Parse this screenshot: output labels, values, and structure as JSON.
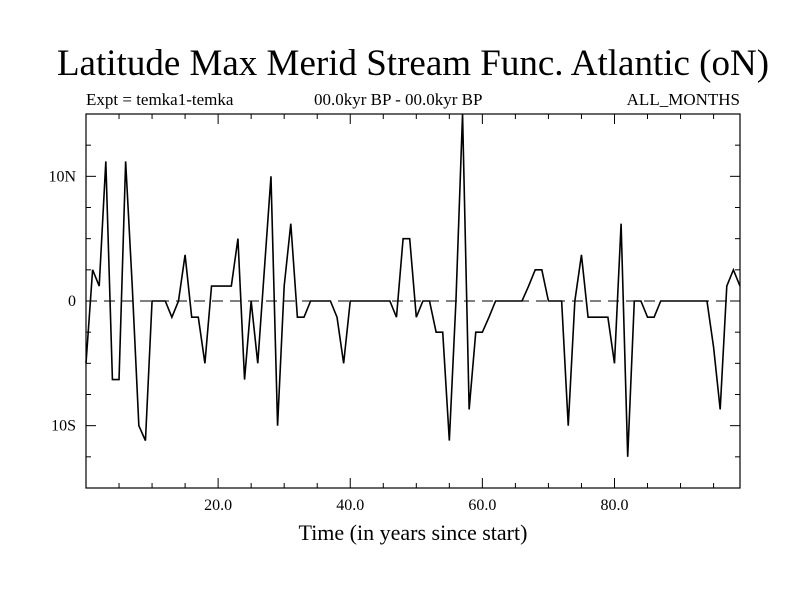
{
  "chart_data": {
    "type": "line",
    "title": "Latitude Max Merid Stream Func. Atlantic (oN)",
    "subtitle_left": "Expt = temka1-temka",
    "subtitle_center": "00.0kyr BP - 00.0kyr BP",
    "subtitle_right": "ALL_MONTHS",
    "xlabel": "Time (in years since start)",
    "ylabel": "",
    "xlim": [
      0,
      99
    ],
    "ylim": [
      -15,
      15
    ],
    "x_ticks": [
      {
        "value": 20,
        "label": "20.0"
      },
      {
        "value": 40,
        "label": "40.0"
      },
      {
        "value": 60,
        "label": "60.0"
      },
      {
        "value": 80,
        "label": "80.0"
      }
    ],
    "y_ticks": [
      {
        "value": 10,
        "label": "10N"
      },
      {
        "value": 0,
        "label": "0"
      },
      {
        "value": -10,
        "label": "10S"
      }
    ],
    "zero_line": "dashed",
    "grid": false,
    "series": [
      {
        "x": [
          0,
          1,
          2,
          3,
          4,
          5,
          6,
          7,
          8,
          9,
          10,
          11,
          12,
          13,
          14,
          15,
          16,
          17,
          18,
          19,
          20,
          21,
          22,
          23,
          24,
          25,
          26,
          27,
          28,
          29,
          30,
          31,
          32,
          33,
          34,
          35,
          36,
          37,
          38,
          39,
          40,
          41,
          42,
          43,
          44,
          45,
          46,
          47,
          48,
          49,
          50,
          51,
          52,
          53,
          54,
          55,
          56,
          57,
          58,
          59,
          60,
          61,
          62,
          63,
          64,
          65,
          66,
          67,
          68,
          69,
          70,
          71,
          72,
          73,
          74,
          75,
          76,
          77,
          78,
          79,
          80,
          81,
          82,
          83,
          84,
          85,
          86,
          87,
          88,
          89,
          90,
          91,
          92,
          93,
          94,
          95,
          96,
          97,
          98,
          99
        ],
        "values": [
          -5,
          2.5,
          1.2,
          11.2,
          -6.3,
          -6.3,
          11.2,
          1.2,
          -10,
          -11.2,
          0,
          0,
          0,
          -1.3,
          0,
          3.7,
          -1.3,
          -1.3,
          -5,
          1.2,
          1.2,
          1.2,
          1.2,
          5,
          -6.3,
          0,
          -5,
          2.5,
          10,
          -10,
          1.2,
          6.2,
          -1.3,
          -1.3,
          0,
          0,
          0,
          0,
          -1.3,
          -5,
          0,
          0,
          0,
          0,
          0,
          0,
          0,
          -1.3,
          5,
          5,
          -1.3,
          0,
          0,
          -2.5,
          -2.5,
          -11.2,
          0,
          15,
          -8.7,
          -2.5,
          -2.5,
          -1.3,
          0,
          0,
          0,
          0,
          0,
          1.2,
          2.5,
          2.5,
          0,
          0,
          0,
          -10,
          0,
          3.7,
          -1.3,
          -1.3,
          -1.3,
          -1.3,
          -5,
          6.2,
          -12.5,
          0,
          0,
          -1.3,
          -1.3,
          0,
          0,
          0,
          0,
          0,
          0,
          0,
          0,
          -3.7,
          -8.7,
          1.2,
          2.5,
          1.2
        ]
      }
    ]
  }
}
